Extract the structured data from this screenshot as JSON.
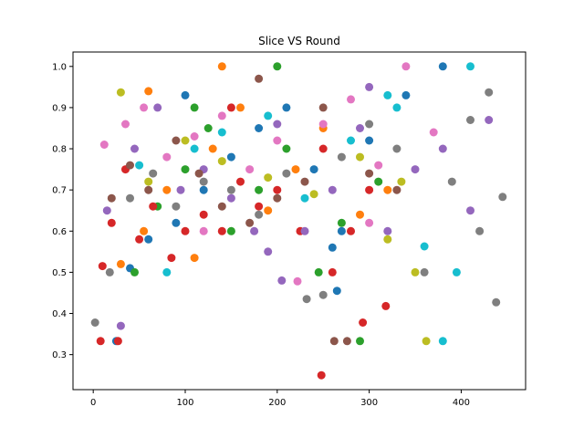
{
  "chart_data": {
    "type": "scatter",
    "title": "Slice VS Round",
    "xlabel": "",
    "ylabel": "",
    "xlim": [
      -22,
      470
    ],
    "ylim": [
      0.215,
      1.035
    ],
    "xticks": [
      0,
      100,
      200,
      300,
      400
    ],
    "yticks": [
      0.3,
      0.4,
      0.5,
      0.6,
      0.7,
      0.8,
      0.9,
      1.0
    ],
    "xtick_labels": [
      "0",
      "100",
      "200",
      "300",
      "400"
    ],
    "ytick_labels": [
      "0.3",
      "0.4",
      "0.5",
      "0.6",
      "0.7",
      "0.8",
      "0.9",
      "1.0"
    ],
    "grid": false,
    "legend": "none",
    "series": [
      {
        "color": "#1f77b4",
        "points": [
          [
            25,
            0.333
          ],
          [
            40,
            0.51
          ],
          [
            60,
            0.58
          ],
          [
            90,
            0.62
          ],
          [
            120,
            0.7
          ],
          [
            150,
            0.78
          ],
          [
            180,
            0.85
          ],
          [
            210,
            0.9
          ],
          [
            240,
            0.75
          ],
          [
            265,
            0.455
          ],
          [
            270,
            0.6
          ],
          [
            300,
            0.82
          ],
          [
            340,
            0.93
          ],
          [
            380,
            1.0
          ],
          [
            260,
            0.56
          ],
          [
            100,
            0.93
          ]
        ]
      },
      {
        "color": "#ff7f0e",
        "points": [
          [
            30,
            0.52
          ],
          [
            55,
            0.6
          ],
          [
            80,
            0.7
          ],
          [
            110,
            0.535
          ],
          [
            130,
            0.8
          ],
          [
            160,
            0.9
          ],
          [
            190,
            0.65
          ],
          [
            220,
            0.75
          ],
          [
            250,
            0.85
          ],
          [
            290,
            0.64
          ],
          [
            320,
            0.7
          ],
          [
            60,
            0.94
          ],
          [
            140,
            1.0
          ]
        ]
      },
      {
        "color": "#2ca02c",
        "points": [
          [
            45,
            0.5
          ],
          [
            70,
            0.66
          ],
          [
            100,
            0.75
          ],
          [
            125,
            0.85
          ],
          [
            150,
            0.6
          ],
          [
            180,
            0.7
          ],
          [
            210,
            0.8
          ],
          [
            245,
            0.5
          ],
          [
            270,
            0.62
          ],
          [
            290,
            0.333
          ],
          [
            310,
            0.72
          ],
          [
            200,
            1.0
          ],
          [
            110,
            0.9
          ]
        ]
      },
      {
        "color": "#d62728",
        "points": [
          [
            8,
            0.333
          ],
          [
            10,
            0.515
          ],
          [
            20,
            0.62
          ],
          [
            27,
            0.333
          ],
          [
            35,
            0.75
          ],
          [
            50,
            0.58
          ],
          [
            65,
            0.66
          ],
          [
            85,
            0.535
          ],
          [
            100,
            0.6
          ],
          [
            120,
            0.64
          ],
          [
            140,
            0.6
          ],
          [
            160,
            0.72
          ],
          [
            180,
            0.66
          ],
          [
            200,
            0.7
          ],
          [
            225,
            0.6
          ],
          [
            248,
            0.25
          ],
          [
            260,
            0.5
          ],
          [
            280,
            0.6
          ],
          [
            293,
            0.378
          ],
          [
            318,
            0.418
          ],
          [
            300,
            0.7
          ],
          [
            250,
            0.8
          ],
          [
            150,
            0.9
          ]
        ]
      },
      {
        "color": "#9467bd",
        "points": [
          [
            15,
            0.65
          ],
          [
            30,
            0.37
          ],
          [
            45,
            0.8
          ],
          [
            70,
            0.9
          ],
          [
            95,
            0.7
          ],
          [
            120,
            0.75
          ],
          [
            150,
            0.68
          ],
          [
            175,
            0.6
          ],
          [
            190,
            0.55
          ],
          [
            205,
            0.48
          ],
          [
            230,
            0.6
          ],
          [
            260,
            0.7
          ],
          [
            290,
            0.85
          ],
          [
            320,
            0.6
          ],
          [
            350,
            0.75
          ],
          [
            380,
            0.8
          ],
          [
            410,
            0.65
          ],
          [
            430,
            0.87
          ],
          [
            300,
            0.95
          ],
          [
            200,
            0.86
          ]
        ]
      },
      {
        "color": "#8c564b",
        "points": [
          [
            20,
            0.68
          ],
          [
            40,
            0.76
          ],
          [
            60,
            0.7
          ],
          [
            90,
            0.82
          ],
          [
            115,
            0.74
          ],
          [
            140,
            0.66
          ],
          [
            170,
            0.62
          ],
          [
            200,
            0.68
          ],
          [
            230,
            0.72
          ],
          [
            262,
            0.333
          ],
          [
            276,
            0.333
          ],
          [
            300,
            0.74
          ],
          [
            330,
            0.7
          ],
          [
            250,
            0.9
          ],
          [
            180,
            0.97
          ]
        ]
      },
      {
        "color": "#e377c2",
        "points": [
          [
            12,
            0.81
          ],
          [
            35,
            0.86
          ],
          [
            55,
            0.9
          ],
          [
            80,
            0.78
          ],
          [
            110,
            0.83
          ],
          [
            140,
            0.88
          ],
          [
            170,
            0.75
          ],
          [
            200,
            0.82
          ],
          [
            222,
            0.478
          ],
          [
            250,
            0.86
          ],
          [
            280,
            0.92
          ],
          [
            310,
            0.76
          ],
          [
            340,
            1.0
          ],
          [
            370,
            0.84
          ],
          [
            300,
            0.62
          ],
          [
            120,
            0.6
          ]
        ]
      },
      {
        "color": "#7f7f7f",
        "points": [
          [
            2,
            0.378
          ],
          [
            18,
            0.5
          ],
          [
            40,
            0.68
          ],
          [
            65,
            0.74
          ],
          [
            90,
            0.66
          ],
          [
            120,
            0.72
          ],
          [
            150,
            0.7
          ],
          [
            180,
            0.64
          ],
          [
            210,
            0.74
          ],
          [
            232,
            0.435
          ],
          [
            250,
            0.445
          ],
          [
            270,
            0.78
          ],
          [
            300,
            0.86
          ],
          [
            330,
            0.8
          ],
          [
            360,
            0.5
          ],
          [
            390,
            0.72
          ],
          [
            420,
            0.6
          ],
          [
            438,
            0.427
          ],
          [
            445,
            0.683
          ],
          [
            430,
            0.937
          ],
          [
            410,
            0.87
          ]
        ]
      },
      {
        "color": "#bcbd22",
        "points": [
          [
            30,
            0.937
          ],
          [
            60,
            0.72
          ],
          [
            100,
            0.82
          ],
          [
            140,
            0.77
          ],
          [
            190,
            0.73
          ],
          [
            240,
            0.69
          ],
          [
            290,
            0.78
          ],
          [
            335,
            0.72
          ],
          [
            362,
            0.333
          ],
          [
            350,
            0.5
          ],
          [
            320,
            0.58
          ]
        ]
      },
      {
        "color": "#17becf",
        "points": [
          [
            50,
            0.76
          ],
          [
            80,
            0.5
          ],
          [
            110,
            0.8
          ],
          [
            140,
            0.84
          ],
          [
            190,
            0.88
          ],
          [
            230,
            0.68
          ],
          [
            280,
            0.82
          ],
          [
            320,
            0.93
          ],
          [
            360,
            0.563
          ],
          [
            380,
            0.333
          ],
          [
            395,
            0.5
          ],
          [
            410,
            1.0
          ],
          [
            330,
            0.9
          ]
        ]
      }
    ]
  }
}
